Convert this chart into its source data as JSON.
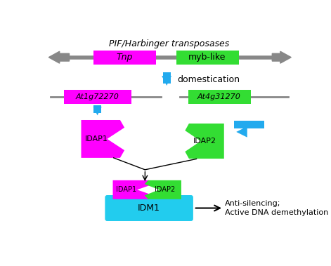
{
  "title": "PIF/Harbinger transposases",
  "bg_color": "#ffffff",
  "magenta": "#FF00FF",
  "green": "#33DD33",
  "cyan_arrow": "#22AAEE",
  "gray": "#888888",
  "cyan_box": "#22CCEE",
  "black": "#000000",
  "domestication_text": "domestication",
  "tnp_label": "Tnp",
  "myb_label": "myb-like",
  "at1g_label": "At1g72270",
  "at4g_label": "At4g31270",
  "idap1_label": "IDAP1",
  "idap2_label": "IDAP2",
  "idm1_label": "IDM1",
  "anti_text1": "Anti-silencing;",
  "anti_text2": "Active DNA demethylation",
  "figsize": [
    4.71,
    3.79
  ],
  "dpi": 100
}
